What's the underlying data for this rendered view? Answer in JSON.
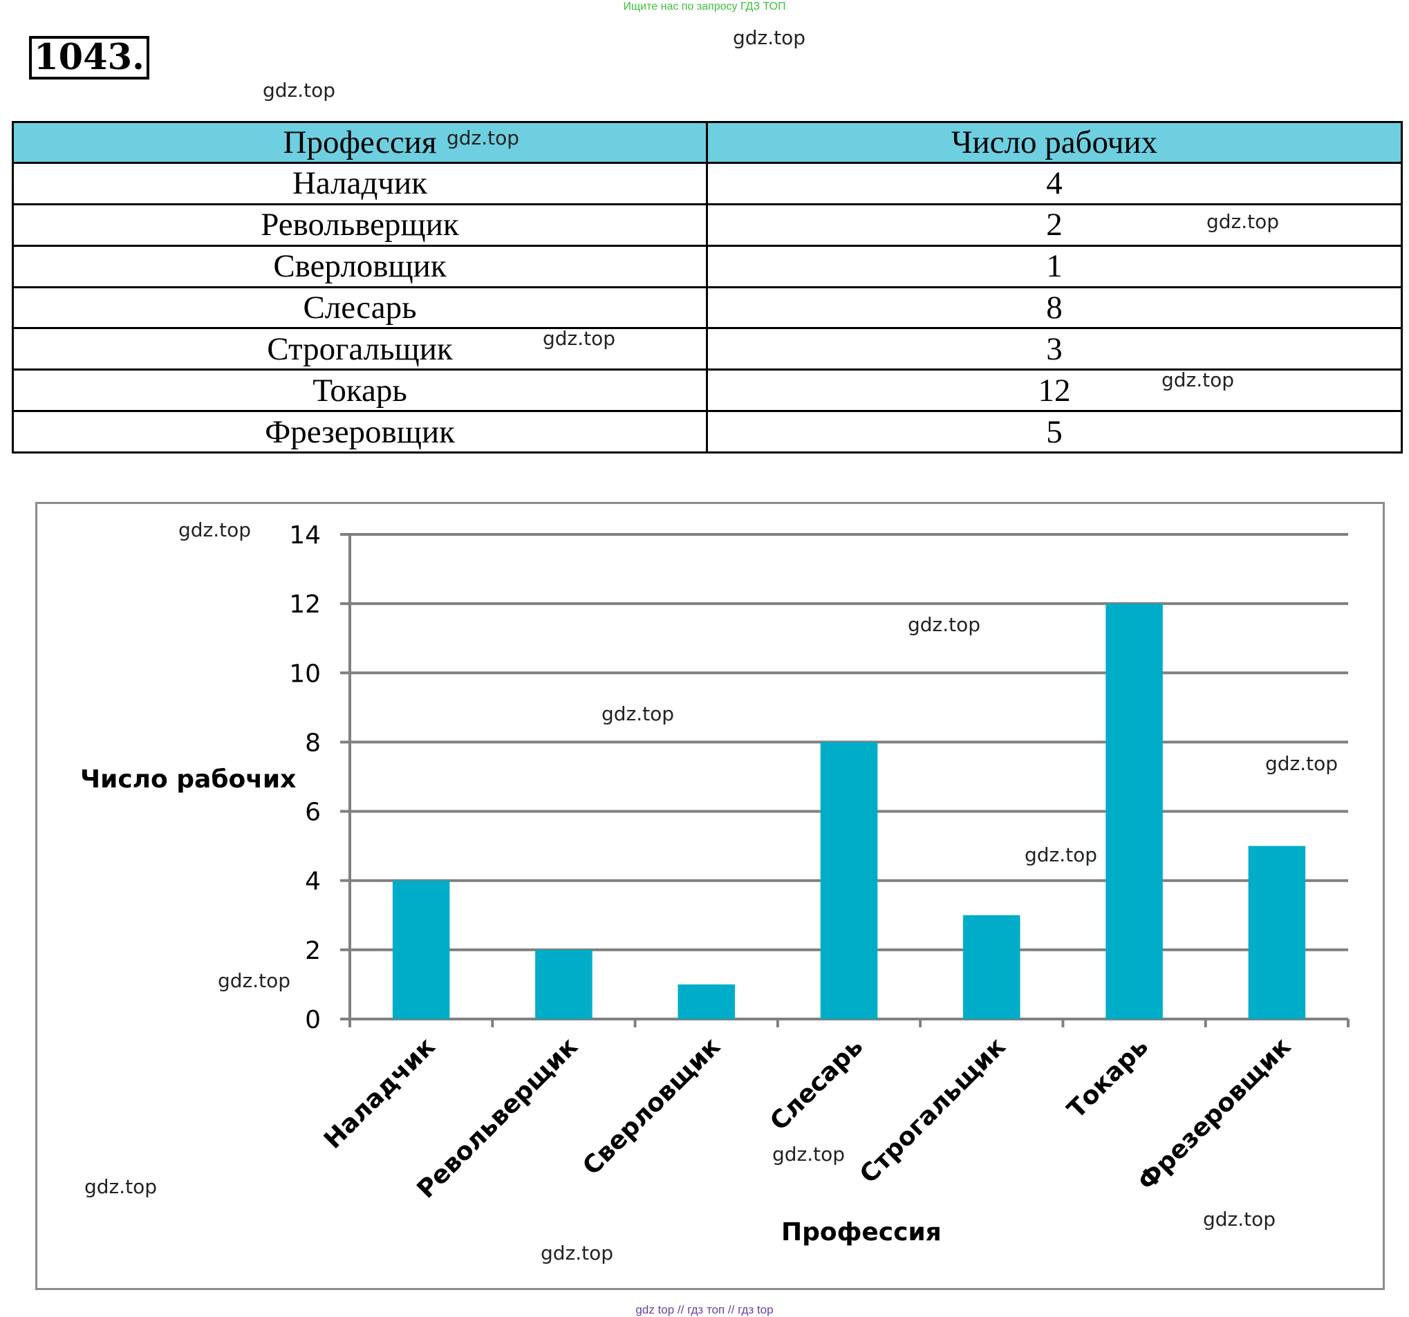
{
  "header": {
    "top_note": "Ищите нас по запросу ГДЗ ТОП",
    "problem_number": "1043."
  },
  "watermarks": [
    "gdz.top",
    "gdz.top",
    "gdz.top",
    "gdz.top",
    "gdz.top",
    "gdz.top",
    "gdz.top",
    "gdz.top",
    "gdz.top",
    "gdz.top",
    "gdz.top",
    "gdz.top",
    "gdz.top",
    "gdz.top",
    "gdz.top",
    "gdz.top"
  ],
  "table": {
    "headers": [
      "Профессия",
      "Число рабочих"
    ],
    "rows": [
      [
        "Наладчик",
        "4"
      ],
      [
        "Револьверщик",
        "2"
      ],
      [
        "Сверловщик",
        "1"
      ],
      [
        "Слесарь",
        "8"
      ],
      [
        "Строгальщик",
        "3"
      ],
      [
        "Токарь",
        "12"
      ],
      [
        "Фрезеровщик",
        "5"
      ]
    ]
  },
  "chart_data": {
    "type": "bar",
    "categories": [
      "Наладчик",
      "Револьверщик",
      "Сверловщик",
      "Слесарь",
      "Строгальщик",
      "Токарь",
      "Фрезеровщик"
    ],
    "values": [
      4,
      2,
      1,
      8,
      3,
      12,
      5
    ],
    "xlabel": "Профессия",
    "ylabel": "Число рабочих",
    "ylim": [
      0,
      14
    ],
    "yticks": [
      0,
      2,
      4,
      6,
      8,
      10,
      12,
      14
    ],
    "grid": true,
    "bar_color": "#00adc8",
    "grid_color": "#808080"
  },
  "footer": {
    "note": "gdz top  //  гдз топ  //  гдз top"
  }
}
